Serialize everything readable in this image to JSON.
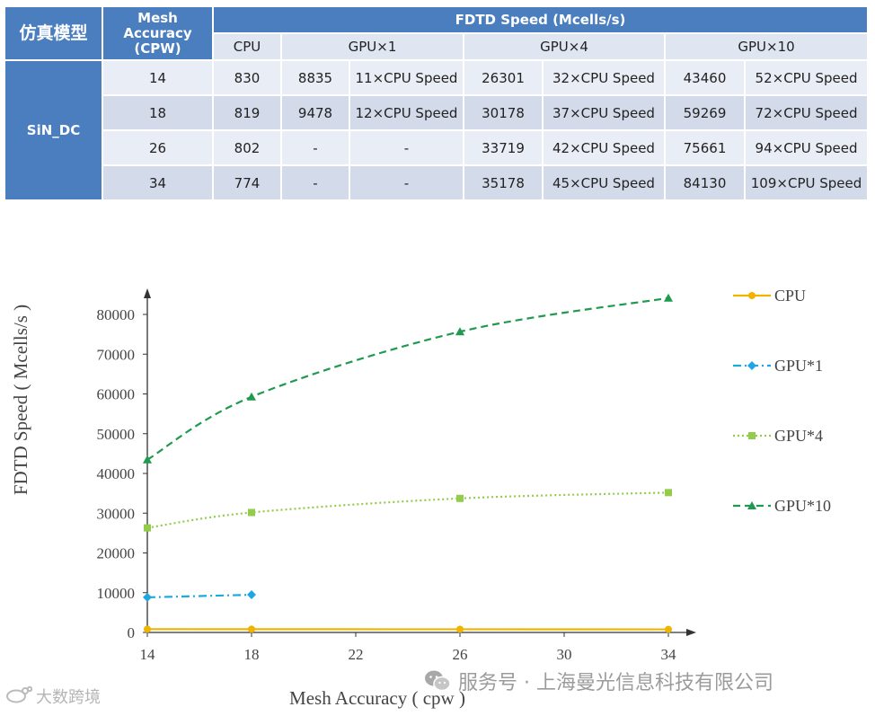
{
  "table": {
    "header_model": "仿真模型",
    "header_mesh": "Mesh Accuracy (CPW)",
    "header_speed": "FDTD Speed (Mcells/s)",
    "sub_cpu": "CPU",
    "sub_gpu1": "GPU×1",
    "sub_gpu4": "GPU×4",
    "sub_gpu10": "GPU×10",
    "model": "SiN_DC",
    "rows": [
      {
        "mesh": "14",
        "cpu": "830",
        "gpu1": "8835",
        "gpu1x": "11×CPU Speed",
        "gpu4": "26301",
        "gpu4x": "32×CPU Speed",
        "gpu10": "43460",
        "gpu10x": "52×CPU Speed"
      },
      {
        "mesh": "18",
        "cpu": "819",
        "gpu1": "9478",
        "gpu1x": "12×CPU Speed",
        "gpu4": "30178",
        "gpu4x": "37×CPU Speed",
        "gpu10": "59269",
        "gpu10x": "72×CPU Speed"
      },
      {
        "mesh": "26",
        "cpu": "802",
        "gpu1": "-",
        "gpu1x": "-",
        "gpu4": "33719",
        "gpu4x": "42×CPU Speed",
        "gpu10": "75661",
        "gpu10x": "94×CPU Speed"
      },
      {
        "mesh": "34",
        "cpu": "774",
        "gpu1": "-",
        "gpu1x": "-",
        "gpu4": "35178",
        "gpu4x": "45×CPU Speed",
        "gpu10": "84130",
        "gpu10x": "109×CPU Speed"
      }
    ]
  },
  "chart_data": {
    "type": "line",
    "xlabel": "Mesh Accuracy ( cpw )",
    "ylabel": "FDTD Speed ( Mcells/s )",
    "xlim": [
      14,
      34
    ],
    "ylim": [
      0,
      80000
    ],
    "xticks": [
      14,
      18,
      22,
      26,
      30,
      34
    ],
    "yticks": [
      0,
      10000,
      20000,
      30000,
      40000,
      50000,
      60000,
      70000,
      80000
    ],
    "legend_position": "right",
    "series": [
      {
        "name": "CPU",
        "color": "#f0b400",
        "style": "solid",
        "marker": "circle",
        "x": [
          14,
          18,
          26,
          34
        ],
        "y": [
          830,
          819,
          802,
          774
        ]
      },
      {
        "name": "GPU*1",
        "color": "#1ea7e1",
        "style": "dashdot",
        "marker": "diamond",
        "x": [
          14,
          18
        ],
        "y": [
          8835,
          9478
        ]
      },
      {
        "name": "GPU*4",
        "color": "#92cc4a",
        "style": "dotted",
        "marker": "square",
        "x": [
          14,
          18,
          26,
          34
        ],
        "y": [
          26301,
          30178,
          33719,
          35178
        ]
      },
      {
        "name": "GPU*10",
        "color": "#1f9a4e",
        "style": "dashed",
        "marker": "triangle",
        "x": [
          14,
          18,
          26,
          34
        ],
        "y": [
          43460,
          59269,
          75661,
          84130
        ]
      }
    ]
  },
  "watermark": {
    "right": "服务号 · 上海曼光信息科技有限公司",
    "left": "大数跨境",
    "left_icon": "weibo-icon",
    "right_icon": "wechat-icon"
  }
}
